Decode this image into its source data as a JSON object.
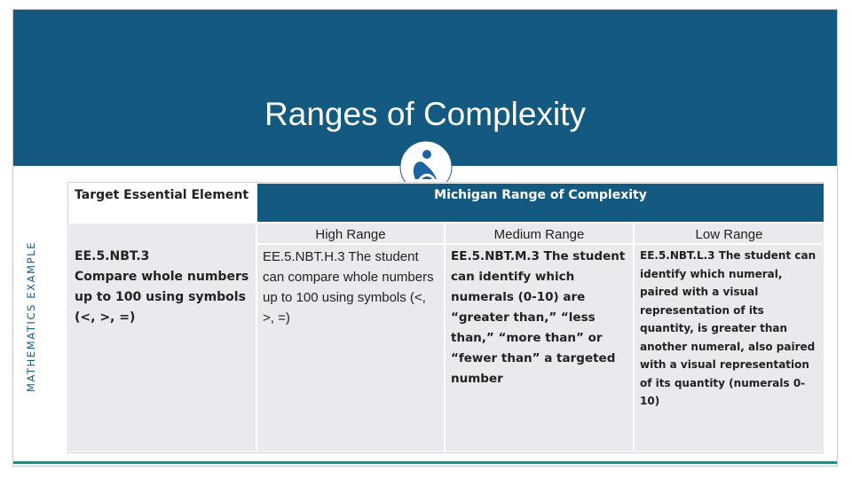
{
  "title": "Ranges of Complexity",
  "side_label": "MATHEMATICS EXAMPLE",
  "table": {
    "headers": [
      "Target Essential Element",
      "Michigan Range of Complexity"
    ],
    "subheaders": [
      "High Range",
      "Medium Range",
      "Low Range"
    ],
    "element": {
      "code": "EE.5.NBT.3",
      "text": "Compare whole numbers up to 100 using symbols (<, >, =)"
    },
    "cells": [
      "EE.5.NBT.H.3 The student can compare whole numbers up to 100 using symbols (<, >, =)",
      "EE.5.NBT.M.3 The student can identify which numerals (0-10) are “greater than,” “less than,” “more than” or “fewer than” a targeted number",
      "EE.5.NBT.L.3 The student can identify which numeral, paired with a visual representation of its quantity, is greater than another numeral, also paired with a visual representation of its quantity (numerals 0-10)"
    ]
  }
}
